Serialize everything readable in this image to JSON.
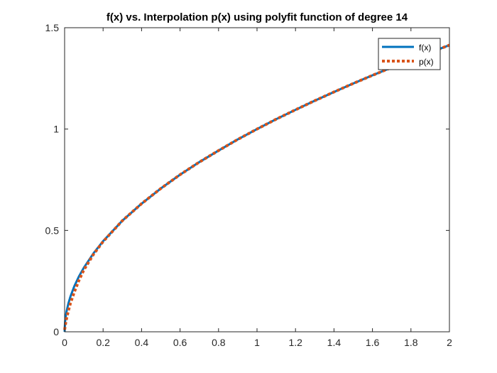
{
  "chart_data": {
    "type": "line",
    "title": "f(x) vs. Interpolation p(x) using polyfit function of degree 14",
    "xlabel": "",
    "ylabel": "",
    "xlim": [
      0,
      2
    ],
    "ylim": [
      0,
      1.5
    ],
    "x_ticks": [
      "0",
      "0.2",
      "0.4",
      "0.6",
      "0.8",
      "1",
      "1.2",
      "1.4",
      "1.6",
      "1.8",
      "2"
    ],
    "y_ticks": [
      "0",
      "0.5",
      "1",
      "1.5"
    ],
    "grid": false,
    "legend_position": "top-right",
    "series": [
      {
        "name": "f(x)",
        "style": "solid",
        "color": "#0072BD",
        "x": [
          0,
          0.002,
          0.005,
          0.01,
          0.02,
          0.03,
          0.05,
          0.075,
          0.1,
          0.15,
          0.2,
          0.3,
          0.4,
          0.5,
          0.6,
          0.7,
          0.8,
          0.9,
          1.0,
          1.1,
          1.2,
          1.3,
          1.4,
          1.5,
          1.6,
          1.7,
          1.8,
          1.9,
          2.0
        ],
        "y": [
          0,
          0.045,
          0.071,
          0.1,
          0.141,
          0.173,
          0.224,
          0.274,
          0.316,
          0.387,
          0.447,
          0.548,
          0.632,
          0.707,
          0.775,
          0.837,
          0.894,
          0.949,
          1.0,
          1.049,
          1.095,
          1.14,
          1.183,
          1.225,
          1.265,
          1.304,
          1.342,
          1.378,
          1.414
        ]
      },
      {
        "name": "p(x)",
        "style": "dotted",
        "color": "#D95319",
        "x": [
          0,
          0.005,
          0.01,
          0.02,
          0.03,
          0.05,
          0.075,
          0.1,
          0.15,
          0.2,
          0.3,
          0.4,
          0.5,
          0.6,
          0.7,
          0.8,
          0.9,
          1.0,
          1.1,
          1.2,
          1.3,
          1.4,
          1.5,
          1.6,
          1.7,
          1.8,
          1.9,
          2.0
        ],
        "y": [
          0.01,
          0.04,
          0.065,
          0.105,
          0.14,
          0.195,
          0.255,
          0.305,
          0.382,
          0.445,
          0.548,
          0.632,
          0.707,
          0.775,
          0.837,
          0.894,
          0.949,
          1.0,
          1.049,
          1.095,
          1.14,
          1.183,
          1.225,
          1.265,
          1.304,
          1.342,
          1.378,
          1.414
        ]
      }
    ]
  }
}
